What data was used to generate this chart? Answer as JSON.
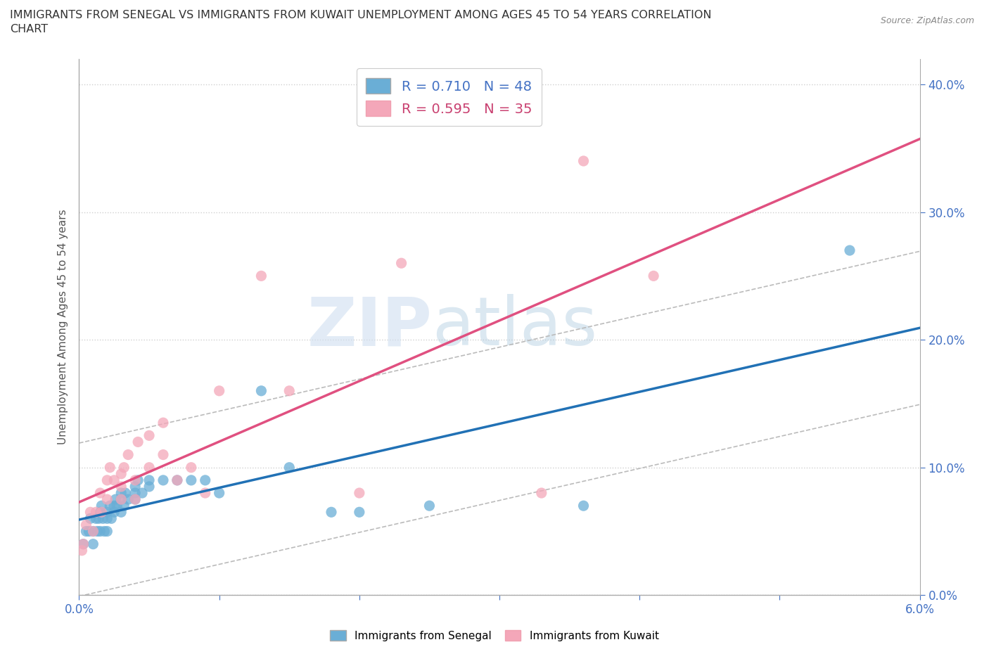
{
  "title_line1": "IMMIGRANTS FROM SENEGAL VS IMMIGRANTS FROM KUWAIT UNEMPLOYMENT AMONG AGES 45 TO 54 YEARS CORRELATION",
  "title_line2": "CHART",
  "source": "Source: ZipAtlas.com",
  "ylabel": "Unemployment Among Ages 45 to 54 years",
  "xlim": [
    0.0,
    0.06
  ],
  "ylim": [
    0.0,
    0.42
  ],
  "xticks": [
    0.0,
    0.01,
    0.02,
    0.03,
    0.04,
    0.05,
    0.06
  ],
  "yticks": [
    0.0,
    0.1,
    0.2,
    0.3,
    0.4
  ],
  "senegal_color": "#6aaed6",
  "kuwait_color": "#f4a7b9",
  "senegal_line_color": "#2171b5",
  "kuwait_line_color": "#e05080",
  "senegal_R": 0.71,
  "senegal_N": 48,
  "kuwait_R": 0.595,
  "kuwait_N": 35,
  "watermark_zip": "ZIP",
  "watermark_atlas": "atlas",
  "background_color": "#ffffff",
  "grid_color": "#d0d0d0",
  "confidence_color": "#bbbbbb",
  "tick_color": "#4472c4",
  "senegal_scatter_x": [
    0.0003,
    0.0005,
    0.0007,
    0.0008,
    0.001,
    0.001,
    0.0012,
    0.0013,
    0.0014,
    0.0015,
    0.0015,
    0.0016,
    0.0017,
    0.0018,
    0.002,
    0.002,
    0.002,
    0.0022,
    0.0023,
    0.0025,
    0.0025,
    0.0026,
    0.0027,
    0.003,
    0.003,
    0.003,
    0.0032,
    0.0033,
    0.0035,
    0.004,
    0.004,
    0.004,
    0.0042,
    0.0045,
    0.005,
    0.005,
    0.006,
    0.007,
    0.008,
    0.009,
    0.01,
    0.013,
    0.015,
    0.018,
    0.02,
    0.025,
    0.036,
    0.055
  ],
  "senegal_scatter_y": [
    0.04,
    0.05,
    0.05,
    0.06,
    0.04,
    0.05,
    0.06,
    0.05,
    0.06,
    0.05,
    0.065,
    0.07,
    0.06,
    0.05,
    0.05,
    0.06,
    0.065,
    0.07,
    0.06,
    0.065,
    0.07,
    0.075,
    0.07,
    0.065,
    0.075,
    0.08,
    0.07,
    0.08,
    0.075,
    0.08,
    0.085,
    0.075,
    0.09,
    0.08,
    0.09,
    0.085,
    0.09,
    0.09,
    0.09,
    0.09,
    0.08,
    0.16,
    0.1,
    0.065,
    0.065,
    0.07,
    0.07,
    0.27
  ],
  "kuwait_scatter_x": [
    0.0002,
    0.0003,
    0.0005,
    0.0008,
    0.001,
    0.0012,
    0.0015,
    0.0016,
    0.002,
    0.002,
    0.0022,
    0.0025,
    0.003,
    0.003,
    0.003,
    0.0032,
    0.0035,
    0.004,
    0.004,
    0.0042,
    0.005,
    0.005,
    0.006,
    0.006,
    0.007,
    0.008,
    0.009,
    0.01,
    0.013,
    0.015,
    0.02,
    0.023,
    0.033,
    0.036,
    0.041
  ],
  "kuwait_scatter_y": [
    0.035,
    0.04,
    0.055,
    0.065,
    0.05,
    0.065,
    0.08,
    0.065,
    0.075,
    0.09,
    0.1,
    0.09,
    0.075,
    0.085,
    0.095,
    0.1,
    0.11,
    0.075,
    0.09,
    0.12,
    0.1,
    0.125,
    0.11,
    0.135,
    0.09,
    0.1,
    0.08,
    0.16,
    0.25,
    0.16,
    0.08,
    0.26,
    0.08,
    0.34,
    0.25
  ]
}
